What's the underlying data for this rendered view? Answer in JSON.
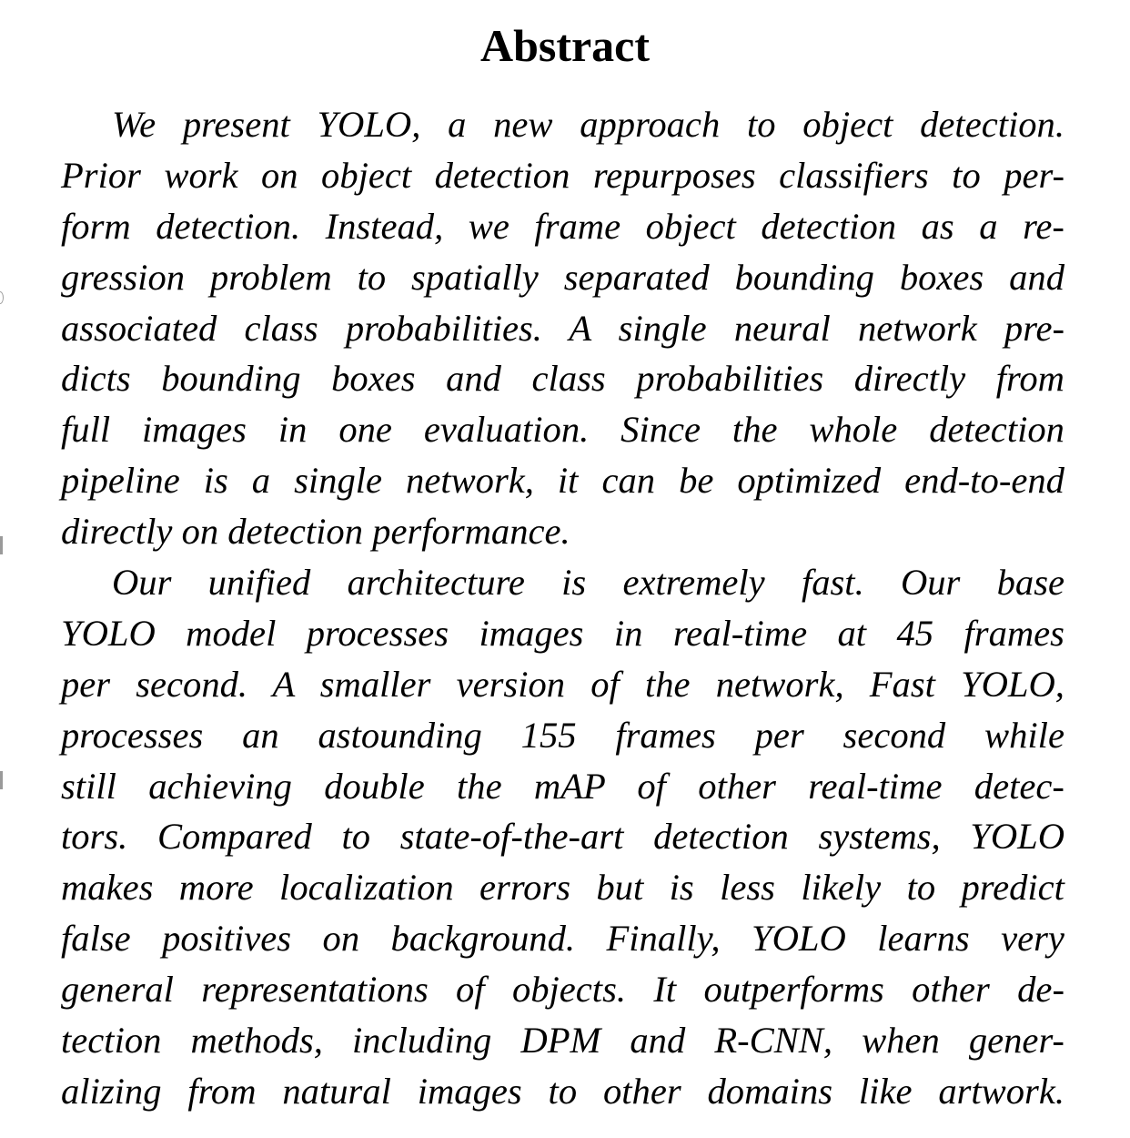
{
  "title": "Abstract",
  "paragraphs": [
    {
      "lines": [
        "We present YOLO, a new approach to object detection.",
        "Prior work on object detection repurposes classifiers to per-",
        "form detection. Instead, we frame object detection as a re-",
        "gression problem to spatially separated bounding boxes and",
        "associated class probabilities. A single neural network pre-",
        "dicts bounding boxes and class probabilities directly from",
        "full images in one evaluation. Since the whole detection",
        "pipeline is a single network, it can be optimized end-to-end",
        "directly on detection performance."
      ]
    },
    {
      "lines": [
        "Our unified architecture is extremely fast. Our base",
        "YOLO model processes images in real-time at 45 frames",
        "per second. A smaller version of the network, Fast YOLO,",
        "processes an astounding 155 frames per second while",
        "still achieving double the mAP of other real-time detec-",
        "tors. Compared to state-of-the-art detection systems, YOLO",
        "makes more localization errors but is less likely to predict",
        "false positives on background. Finally, YOLO learns very",
        "general representations of objects. It outperforms other de-",
        "tection methods, including DPM and R-CNN, when gener-",
        "alizing from natural images to other domains like artwork."
      ]
    }
  ]
}
